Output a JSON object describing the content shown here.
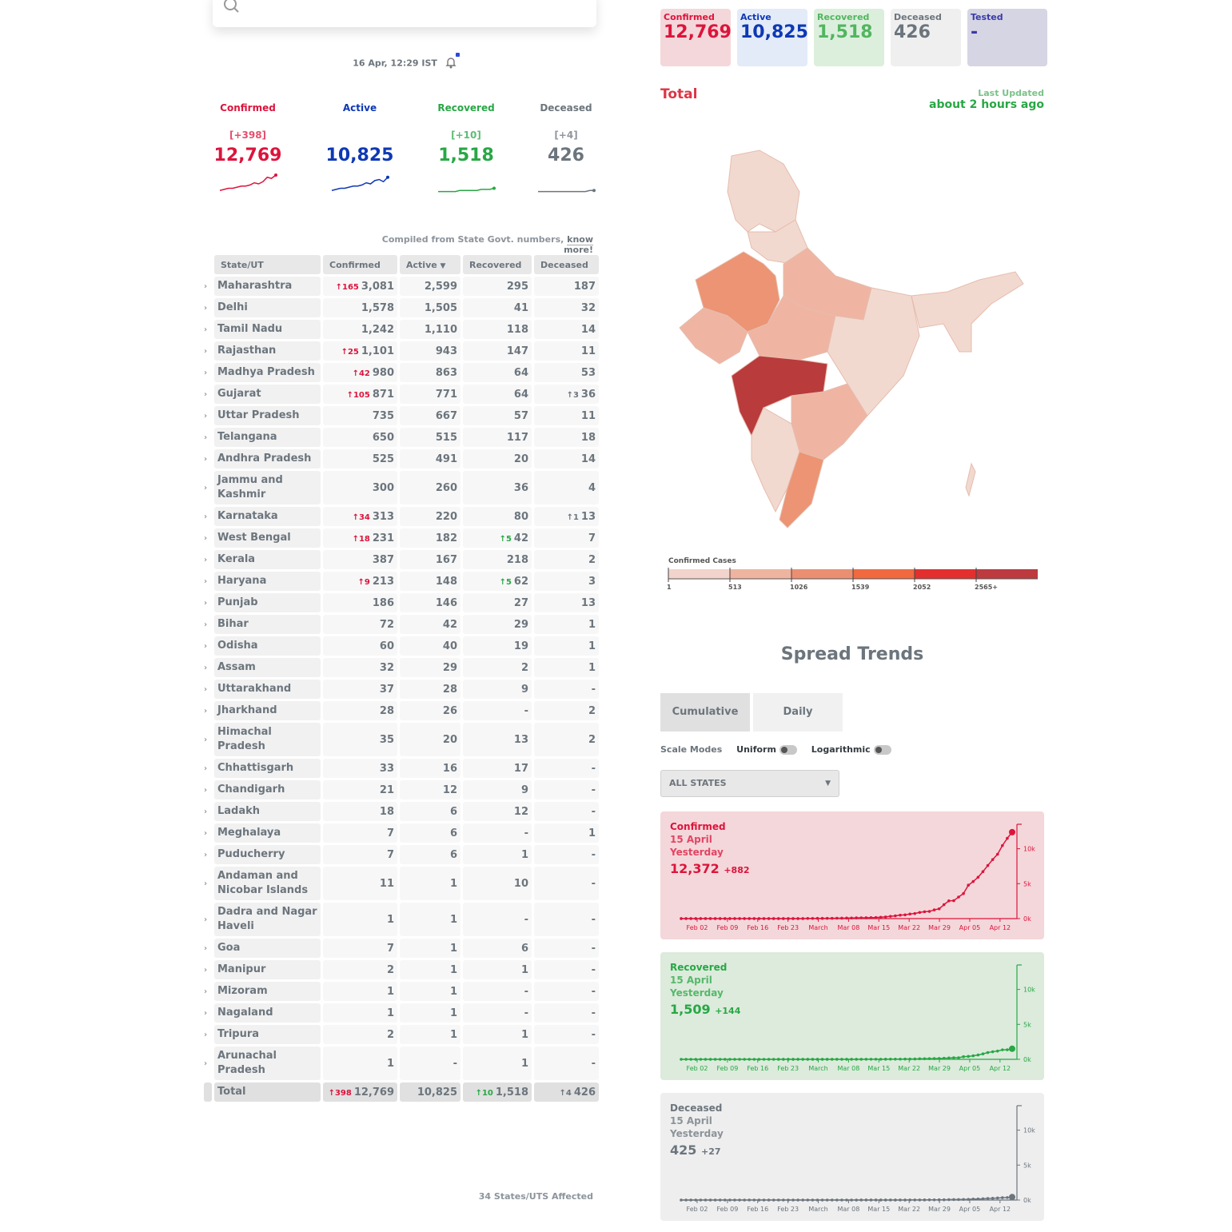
{
  "header": {
    "search_placeholder": "",
    "timestamp": "16 Apr, 12:29 IST"
  },
  "levels": [
    {
      "label": "Confirmed",
      "delta": "[+398]",
      "total": "12,769",
      "color": "#dc143c",
      "spark": [
        2,
        3,
        4,
        4,
        5,
        6,
        6,
        7,
        9,
        8,
        10,
        14,
        13,
        16
      ]
    },
    {
      "label": "Active",
      "delta": "",
      "total": "10,825",
      "color": "#0e38b5",
      "spark": [
        2,
        3,
        4,
        4,
        5,
        6,
        6,
        7,
        9,
        8,
        11,
        12,
        10,
        14
      ]
    },
    {
      "label": "Recovered",
      "delta": "[+10]",
      "total": "1,518",
      "color": "#28a745",
      "spark": [
        1,
        1,
        1,
        1,
        1,
        2,
        2,
        2,
        2,
        2,
        3,
        3,
        3,
        4
      ]
    },
    {
      "label": "Deceased",
      "delta": "[+4]",
      "total": "426",
      "color": "#6c757d",
      "spark": [
        1,
        1,
        1,
        1,
        1,
        1,
        1,
        1,
        1,
        1,
        1,
        1,
        2,
        2
      ]
    }
  ],
  "compiled": {
    "text": "Compiled from State Govt. numbers, ",
    "link": "know more!"
  },
  "table": {
    "headers": [
      "State/UT",
      "Confirmed",
      "Active",
      "Recovered",
      "Deceased"
    ],
    "sort_icon": "caret-down-icon",
    "rows": [
      {
        "name": "Maharashtra",
        "cd": "↑165",
        "c": "3,081",
        "a": "2,599",
        "rd": "",
        "r": "295",
        "dd": "",
        "d": "187"
      },
      {
        "name": "Delhi",
        "cd": "",
        "c": "1,578",
        "a": "1,505",
        "rd": "",
        "r": "41",
        "dd": "",
        "d": "32"
      },
      {
        "name": "Tamil Nadu",
        "cd": "",
        "c": "1,242",
        "a": "1,110",
        "rd": "",
        "r": "118",
        "dd": "",
        "d": "14"
      },
      {
        "name": "Rajasthan",
        "cd": "↑25",
        "c": "1,101",
        "a": "943",
        "rd": "",
        "r": "147",
        "dd": "",
        "d": "11"
      },
      {
        "name": "Madhya Pradesh",
        "cd": "↑42",
        "c": "980",
        "a": "863",
        "rd": "",
        "r": "64",
        "dd": "",
        "d": "53"
      },
      {
        "name": "Gujarat",
        "cd": "↑105",
        "c": "871",
        "a": "771",
        "rd": "",
        "r": "64",
        "dd": "↑3",
        "d": "36"
      },
      {
        "name": "Uttar Pradesh",
        "cd": "",
        "c": "735",
        "a": "667",
        "rd": "",
        "r": "57",
        "dd": "",
        "d": "11"
      },
      {
        "name": "Telangana",
        "cd": "",
        "c": "650",
        "a": "515",
        "rd": "",
        "r": "117",
        "dd": "",
        "d": "18"
      },
      {
        "name": "Andhra Pradesh",
        "cd": "",
        "c": "525",
        "a": "491",
        "rd": "",
        "r": "20",
        "dd": "",
        "d": "14"
      },
      {
        "name": "Jammu and Kashmir",
        "cd": "",
        "c": "300",
        "a": "260",
        "rd": "",
        "r": "36",
        "dd": "",
        "d": "4",
        "tall": true
      },
      {
        "name": "Karnataka",
        "cd": "↑34",
        "c": "313",
        "a": "220",
        "rd": "",
        "r": "80",
        "dd": "↑1",
        "d": "13"
      },
      {
        "name": "West Bengal",
        "cd": "↑18",
        "c": "231",
        "a": "182",
        "rd": "↑5",
        "r": "42",
        "dd": "",
        "d": "7"
      },
      {
        "name": "Kerala",
        "cd": "",
        "c": "387",
        "a": "167",
        "rd": "",
        "r": "218",
        "dd": "",
        "d": "2"
      },
      {
        "name": "Haryana",
        "cd": "↑9",
        "c": "213",
        "a": "148",
        "rd": "↑5",
        "r": "62",
        "dd": "",
        "d": "3"
      },
      {
        "name": "Punjab",
        "cd": "",
        "c": "186",
        "a": "146",
        "rd": "",
        "r": "27",
        "dd": "",
        "d": "13"
      },
      {
        "name": "Bihar",
        "cd": "",
        "c": "72",
        "a": "42",
        "rd": "",
        "r": "29",
        "dd": "",
        "d": "1"
      },
      {
        "name": "Odisha",
        "cd": "",
        "c": "60",
        "a": "40",
        "rd": "",
        "r": "19",
        "dd": "",
        "d": "1"
      },
      {
        "name": "Assam",
        "cd": "",
        "c": "32",
        "a": "29",
        "rd": "",
        "r": "2",
        "dd": "",
        "d": "1"
      },
      {
        "name": "Uttarakhand",
        "cd": "",
        "c": "37",
        "a": "28",
        "rd": "",
        "r": "9",
        "dd": "",
        "d": "-"
      },
      {
        "name": "Jharkhand",
        "cd": "",
        "c": "28",
        "a": "26",
        "rd": "",
        "r": "-",
        "dd": "",
        "d": "2"
      },
      {
        "name": "Himachal Pradesh",
        "cd": "",
        "c": "35",
        "a": "20",
        "rd": "",
        "r": "13",
        "dd": "",
        "d": "2",
        "tall": true
      },
      {
        "name": "Chhattisgarh",
        "cd": "",
        "c": "33",
        "a": "16",
        "rd": "",
        "r": "17",
        "dd": "",
        "d": "-"
      },
      {
        "name": "Chandigarh",
        "cd": "",
        "c": "21",
        "a": "12",
        "rd": "",
        "r": "9",
        "dd": "",
        "d": "-"
      },
      {
        "name": "Ladakh",
        "cd": "",
        "c": "18",
        "a": "6",
        "rd": "",
        "r": "12",
        "dd": "",
        "d": "-"
      },
      {
        "name": "Meghalaya",
        "cd": "",
        "c": "7",
        "a": "6",
        "rd": "",
        "r": "-",
        "dd": "",
        "d": "1"
      },
      {
        "name": "Puducherry",
        "cd": "",
        "c": "7",
        "a": "6",
        "rd": "",
        "r": "1",
        "dd": "",
        "d": "-"
      },
      {
        "name": "Andaman and Nicobar Islands",
        "cd": "",
        "c": "11",
        "a": "1",
        "rd": "",
        "r": "10",
        "dd": "",
        "d": "-",
        "tall": true
      },
      {
        "name": "Dadra and Nagar Haveli",
        "cd": "",
        "c": "1",
        "a": "1",
        "rd": "",
        "r": "-",
        "dd": "",
        "d": "-",
        "tall": true
      },
      {
        "name": "Goa",
        "cd": "",
        "c": "7",
        "a": "1",
        "rd": "",
        "r": "6",
        "dd": "",
        "d": "-"
      },
      {
        "name": "Manipur",
        "cd": "",
        "c": "2",
        "a": "1",
        "rd": "",
        "r": "1",
        "dd": "",
        "d": "-"
      },
      {
        "name": "Mizoram",
        "cd": "",
        "c": "1",
        "a": "1",
        "rd": "",
        "r": "-",
        "dd": "",
        "d": "-"
      },
      {
        "name": "Nagaland",
        "cd": "",
        "c": "1",
        "a": "1",
        "rd": "",
        "r": "-",
        "dd": "",
        "d": "-"
      },
      {
        "name": "Tripura",
        "cd": "",
        "c": "2",
        "a": "1",
        "rd": "",
        "r": "1",
        "dd": "",
        "d": "-"
      },
      {
        "name": "Arunachal Pradesh",
        "cd": "",
        "c": "1",
        "a": "-",
        "rd": "",
        "r": "1",
        "dd": "",
        "d": "-",
        "tall": true
      }
    ],
    "total": {
      "name": "Total",
      "cd": "↑398",
      "c": "12,769",
      "a": "10,825",
      "rd": "↑10",
      "r": "1,518",
      "dd": "↑4",
      "d": "426"
    },
    "affected": "34 States/UTS Affected"
  },
  "top_boxes": [
    {
      "label": "Confirmed",
      "value": "12,769",
      "bg": "#f4d7da",
      "color": "#dc143c"
    },
    {
      "label": "Active",
      "value": "10,825",
      "bg": "#e3ebf8",
      "color": "#0e38b5"
    },
    {
      "label": "Recovered",
      "value": "1,518",
      "bg": "#dcefdd",
      "color": "#52b55f"
    },
    {
      "label": "Deceased",
      "value": "426",
      "bg": "#efefef",
      "color": "#6c757d"
    },
    {
      "label": "Tested",
      "value": "-",
      "bg": "#d5d5e4",
      "color": "#3a3aa8"
    }
  ],
  "map": {
    "title": "Total",
    "last_updated_label": "Last Updated",
    "last_updated_value": "about 2 hours ago",
    "legend_title": "Confirmed Cases",
    "legend_ticks": [
      "1",
      "513",
      "1026",
      "1539",
      "2052",
      "2565+"
    ],
    "legend_colors": [
      "#f2d4cc",
      "#efb49f",
      "#eb8f72",
      "#f0693f",
      "#e3302e",
      "#bd3a3f"
    ]
  },
  "trends": {
    "title": "Spread Trends",
    "tabs": [
      "Cumulative",
      "Daily"
    ],
    "scale_modes_label": "Scale Modes",
    "uniform_label": "Uniform",
    "log_label": "Logarithmic",
    "state_select": "ALL STATES",
    "x_labels": [
      "Feb 02",
      "Feb 09",
      "Feb 16",
      "Feb 23",
      "March",
      "Mar 08",
      "Mar 15",
      "Mar 22",
      "Mar 29",
      "Apr 05",
      "Apr 12"
    ],
    "y_labels": [
      "10k",
      "5k",
      "0k"
    ],
    "cards": [
      {
        "label": "Confirmed",
        "date": "15 April",
        "day": "Yesterday",
        "value": "12,372",
        "delta": "+882",
        "bg": "#f4d7da",
        "color": "#dc143c"
      },
      {
        "label": "Recovered",
        "date": "15 April",
        "day": "Yesterday",
        "value": "1,509",
        "delta": "+144",
        "bg": "#dcebdc",
        "color": "#28a745"
      },
      {
        "label": "Deceased",
        "date": "15 April",
        "day": "Yesterday",
        "value": "425",
        "delta": "+27",
        "bg": "#eeeeee",
        "color": "#6c757d"
      }
    ]
  },
  "chart_data": [
    {
      "type": "line",
      "series": [
        {
          "name": "Confirmed",
          "values": [
            3,
            3,
            3,
            3,
            3,
            3,
            3,
            3,
            3,
            3,
            3,
            3,
            3,
            3,
            3,
            3,
            3,
            3,
            3,
            3,
            3,
            3,
            3,
            3,
            5,
            6,
            28,
            30,
            31,
            34,
            39,
            43,
            56,
            62,
            73,
            82,
            102,
            113,
            119,
            142,
            156,
            194,
            244,
            330,
            396,
            499,
            536,
            657,
            727,
            887,
            987,
            1024,
            1251,
            1397,
            1998,
            2543,
            2567,
            3082,
            3588,
            4778,
            5311,
            5916,
            6725,
            7598,
            8446,
            9205,
            10453,
            11487,
            12372
          ]
        }
      ]
    },
    {
      "type": "line",
      "series": [
        {
          "name": "Recovered",
          "values": [
            0,
            0,
            0,
            0,
            0,
            0,
            0,
            0,
            0,
            0,
            0,
            0,
            0,
            0,
            0,
            0,
            0,
            0,
            0,
            0,
            3,
            3,
            3,
            3,
            3,
            3,
            3,
            3,
            3,
            3,
            3,
            4,
            4,
            4,
            4,
            4,
            4,
            4,
            13,
            14,
            14,
            15,
            20,
            23,
            27,
            27,
            40,
            43,
            45,
            73,
            84,
            95,
            102,
            123,
            148,
            191,
            229,
            229,
            375,
            421,
            506,
            620,
            774,
            969,
            1080,
            1181,
            1359,
            1365,
            1509
          ]
        }
      ]
    },
    {
      "type": "line",
      "series": [
        {
          "name": "Deceased",
          "values": [
            0,
            0,
            0,
            0,
            0,
            0,
            0,
            0,
            0,
            0,
            0,
            0,
            0,
            0,
            0,
            0,
            0,
            0,
            0,
            0,
            0,
            0,
            0,
            0,
            0,
            0,
            0,
            0,
            0,
            0,
            0,
            0,
            0,
            0,
            0,
            1,
            1,
            2,
            2,
            2,
            2,
            3,
            3,
            4,
            5,
            4,
            7,
            10,
            10,
            12,
            20,
            25,
            27,
            32,
            35,
            58,
            72,
            72,
            86,
            99,
            136,
            150,
            178,
            226,
            246,
            288,
            331,
            358,
            425
          ]
        }
      ]
    }
  ]
}
